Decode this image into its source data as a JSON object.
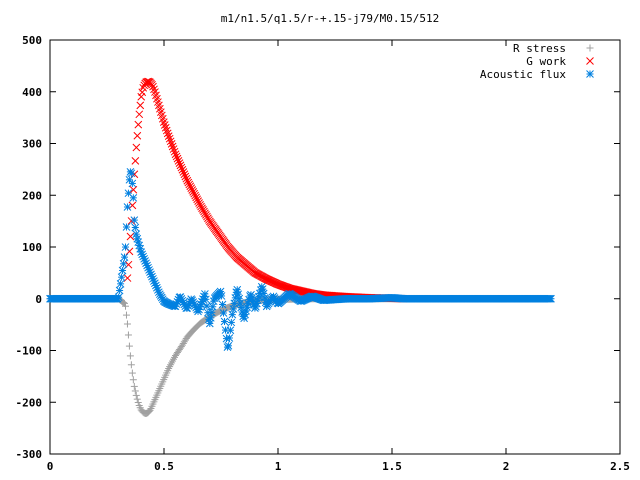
{
  "chart_data": {
    "type": "scatter",
    "title": "m1/n1.5/q1.5/r-+.15-j79/M0.15/512",
    "xlabel": "",
    "ylabel": "",
    "xlim": [
      0,
      2.5
    ],
    "ylim": [
      -300,
      500
    ],
    "x_ticks": [
      0,
      0.5,
      1,
      1.5,
      2,
      2.5
    ],
    "x_tick_labels": [
      "0",
      "0.5",
      "1",
      "1.5",
      "2",
      "2.5"
    ],
    "y_ticks": [
      -300,
      -200,
      -100,
      0,
      100,
      200,
      300,
      400,
      500
    ],
    "y_tick_labels": [
      "-300",
      "-200",
      "-100",
      "0",
      "100",
      "200",
      "300",
      "400",
      "500"
    ],
    "grid": false,
    "legend_position": "top-right",
    "series": [
      {
        "name": "R stress",
        "marker": "plus",
        "color": "#a0a0a0",
        "x": [
          0.0,
          0.1,
          0.2,
          0.3,
          0.33,
          0.34,
          0.35,
          0.36,
          0.37,
          0.38,
          0.39,
          0.4,
          0.41,
          0.42,
          0.43,
          0.44,
          0.45,
          0.46,
          0.48,
          0.5,
          0.52,
          0.55,
          0.58,
          0.6,
          0.63,
          0.66,
          0.7,
          0.74,
          0.78,
          0.82,
          0.86,
          0.9,
          0.95,
          1.0,
          1.05,
          1.1,
          1.15,
          1.2,
          1.3,
          1.4,
          1.5,
          1.55
        ],
        "y": [
          0,
          0,
          0,
          0,
          -10,
          -50,
          -100,
          -140,
          -170,
          -190,
          -205,
          -215,
          -220,
          -222,
          -220,
          -215,
          -205,
          -195,
          -175,
          -155,
          -135,
          -110,
          -90,
          -75,
          -60,
          -47,
          -35,
          -25,
          -17,
          -11,
          -7,
          -4,
          -2,
          -1,
          -1,
          0,
          0,
          0,
          0,
          0,
          0,
          0
        ]
      },
      {
        "name": "G work",
        "marker": "cross",
        "color": "#ff0000",
        "x": [
          0.34,
          0.35,
          0.36,
          0.37,
          0.38,
          0.39,
          0.4,
          0.41,
          0.42,
          0.43,
          0.44,
          0.45,
          0.46,
          0.47,
          0.48,
          0.5,
          0.52,
          0.55,
          0.58,
          0.6,
          0.63,
          0.66,
          0.7,
          0.74,
          0.78,
          0.82,
          0.86,
          0.9,
          0.95,
          1.0,
          1.05,
          1.1,
          1.15,
          1.2,
          1.3,
          1.4,
          1.5,
          1.55
        ],
        "y": [
          40,
          100,
          170,
          240,
          300,
          350,
          390,
          410,
          418,
          420,
          418,
          412,
          400,
          385,
          370,
          340,
          315,
          280,
          250,
          230,
          205,
          180,
          150,
          125,
          100,
          80,
          65,
          50,
          38,
          28,
          20,
          15,
          10,
          7,
          4,
          2,
          1,
          0
        ]
      },
      {
        "name": "Acoustic flux",
        "marker": "star",
        "color": "#0080e0",
        "x": [
          0.0,
          0.05,
          0.1,
          0.15,
          0.2,
          0.25,
          0.3,
          0.33,
          0.34,
          0.345,
          0.35,
          0.355,
          0.36,
          0.365,
          0.37,
          0.38,
          0.39,
          0.4,
          0.42,
          0.44,
          0.46,
          0.48,
          0.5,
          0.52,
          0.55,
          0.57,
          0.6,
          0.62,
          0.65,
          0.68,
          0.7,
          0.72,
          0.75,
          0.78,
          0.8,
          0.82,
          0.85,
          0.88,
          0.9,
          0.93,
          0.95,
          0.98,
          1.0,
          1.05,
          1.1,
          1.15,
          1.2,
          1.3,
          1.4,
          1.5,
          1.55,
          1.6,
          1.7,
          1.8,
          1.9,
          2.0,
          2.1,
          2.2
        ],
        "y": [
          0,
          0,
          0,
          0,
          0,
          0,
          0,
          90,
          180,
          210,
          240,
          250,
          230,
          200,
          150,
          120,
          105,
          90,
          70,
          50,
          30,
          10,
          -5,
          -10,
          -15,
          5,
          -20,
          0,
          -25,
          10,
          -50,
          0,
          15,
          -100,
          -30,
          20,
          -40,
          10,
          -20,
          25,
          -15,
          5,
          -10,
          10,
          -5,
          5,
          -3,
          0,
          0,
          2,
          0,
          0,
          0,
          0,
          0,
          0,
          0,
          0
        ]
      }
    ]
  }
}
